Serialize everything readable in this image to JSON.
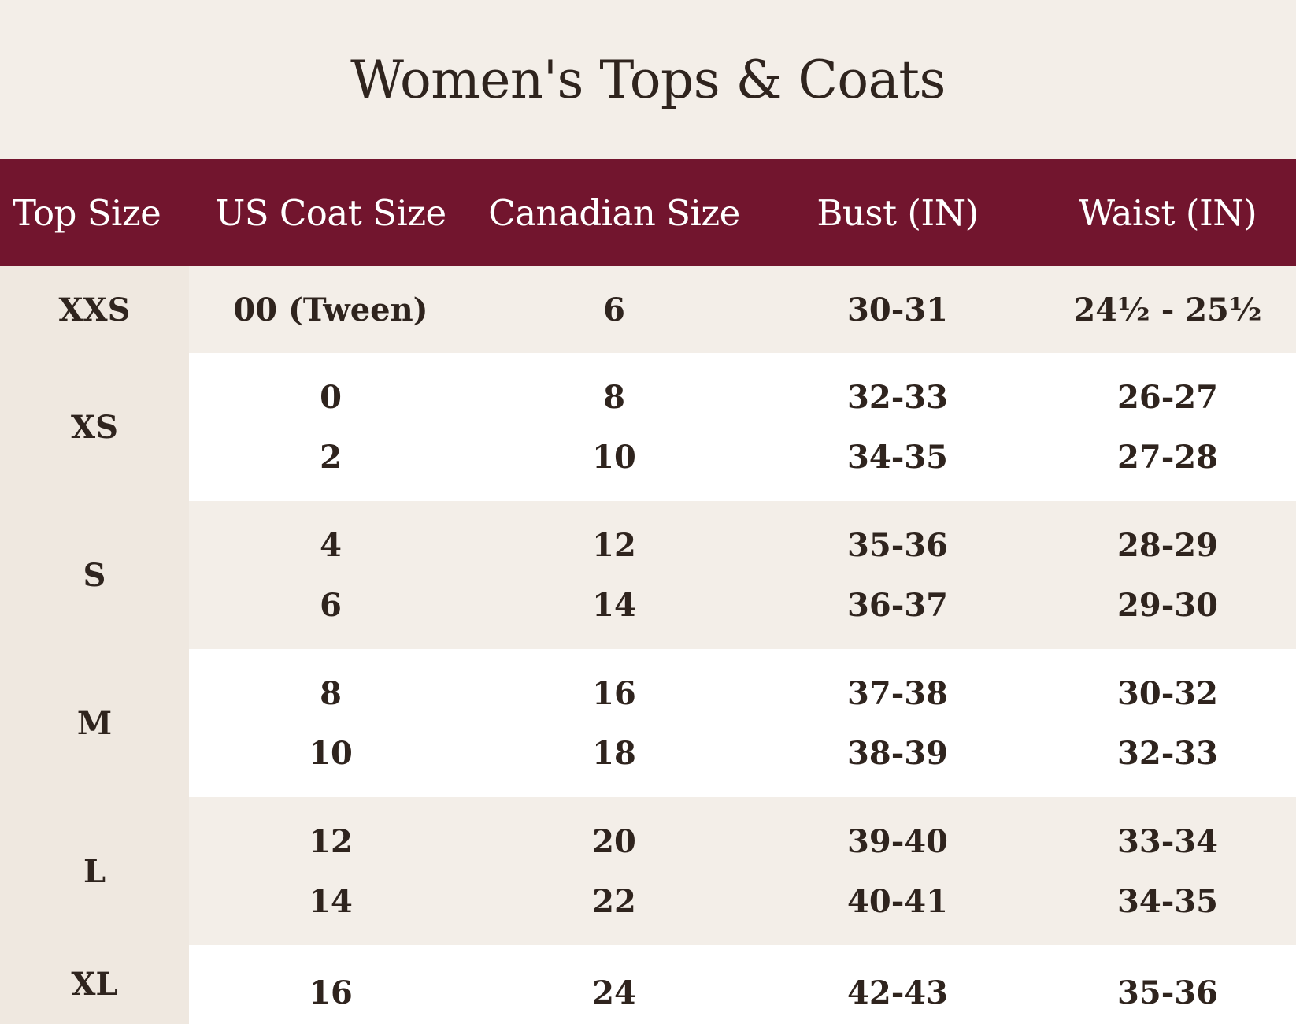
{
  "title": "Women's Tops & Coats",
  "headers": [
    "Top Size",
    "US Coat Size",
    "Canadian Size",
    "Bust (IN)",
    "Waist (IN)"
  ],
  "groups": [
    {
      "size": "XXS",
      "rows": [
        [
          "00 (Tween)",
          "6",
          "30-31",
          "24½ - 25½"
        ]
      ]
    },
    {
      "size": "XS",
      "rows": [
        [
          "0",
          "8",
          "32-33",
          "26-27"
        ],
        [
          "2",
          "10",
          "34-35",
          "27-28"
        ]
      ]
    },
    {
      "size": "S",
      "rows": [
        [
          "4",
          "12",
          "35-36",
          "28-29"
        ],
        [
          "6",
          "14",
          "36-37",
          "29-30"
        ]
      ]
    },
    {
      "size": "M",
      "rows": [
        [
          "8",
          "16",
          "37-38",
          "30-32"
        ],
        [
          "10",
          "18",
          "38-39",
          "32-33"
        ]
      ]
    },
    {
      "size": "L",
      "rows": [
        [
          "12",
          "20",
          "39-40",
          "33-34"
        ],
        [
          "14",
          "22",
          "40-41",
          "34-35"
        ]
      ]
    },
    {
      "size": "XL",
      "rows": [
        [
          "16",
          "24",
          "42-43",
          "35-36"
        ]
      ]
    }
  ],
  "colors": {
    "header_bg": "#72152e",
    "page_bg": "#f3eee8",
    "size_col_bg": "#efe8e0",
    "alt_row_bg": "#ffffff",
    "text": "#2f241e"
  }
}
